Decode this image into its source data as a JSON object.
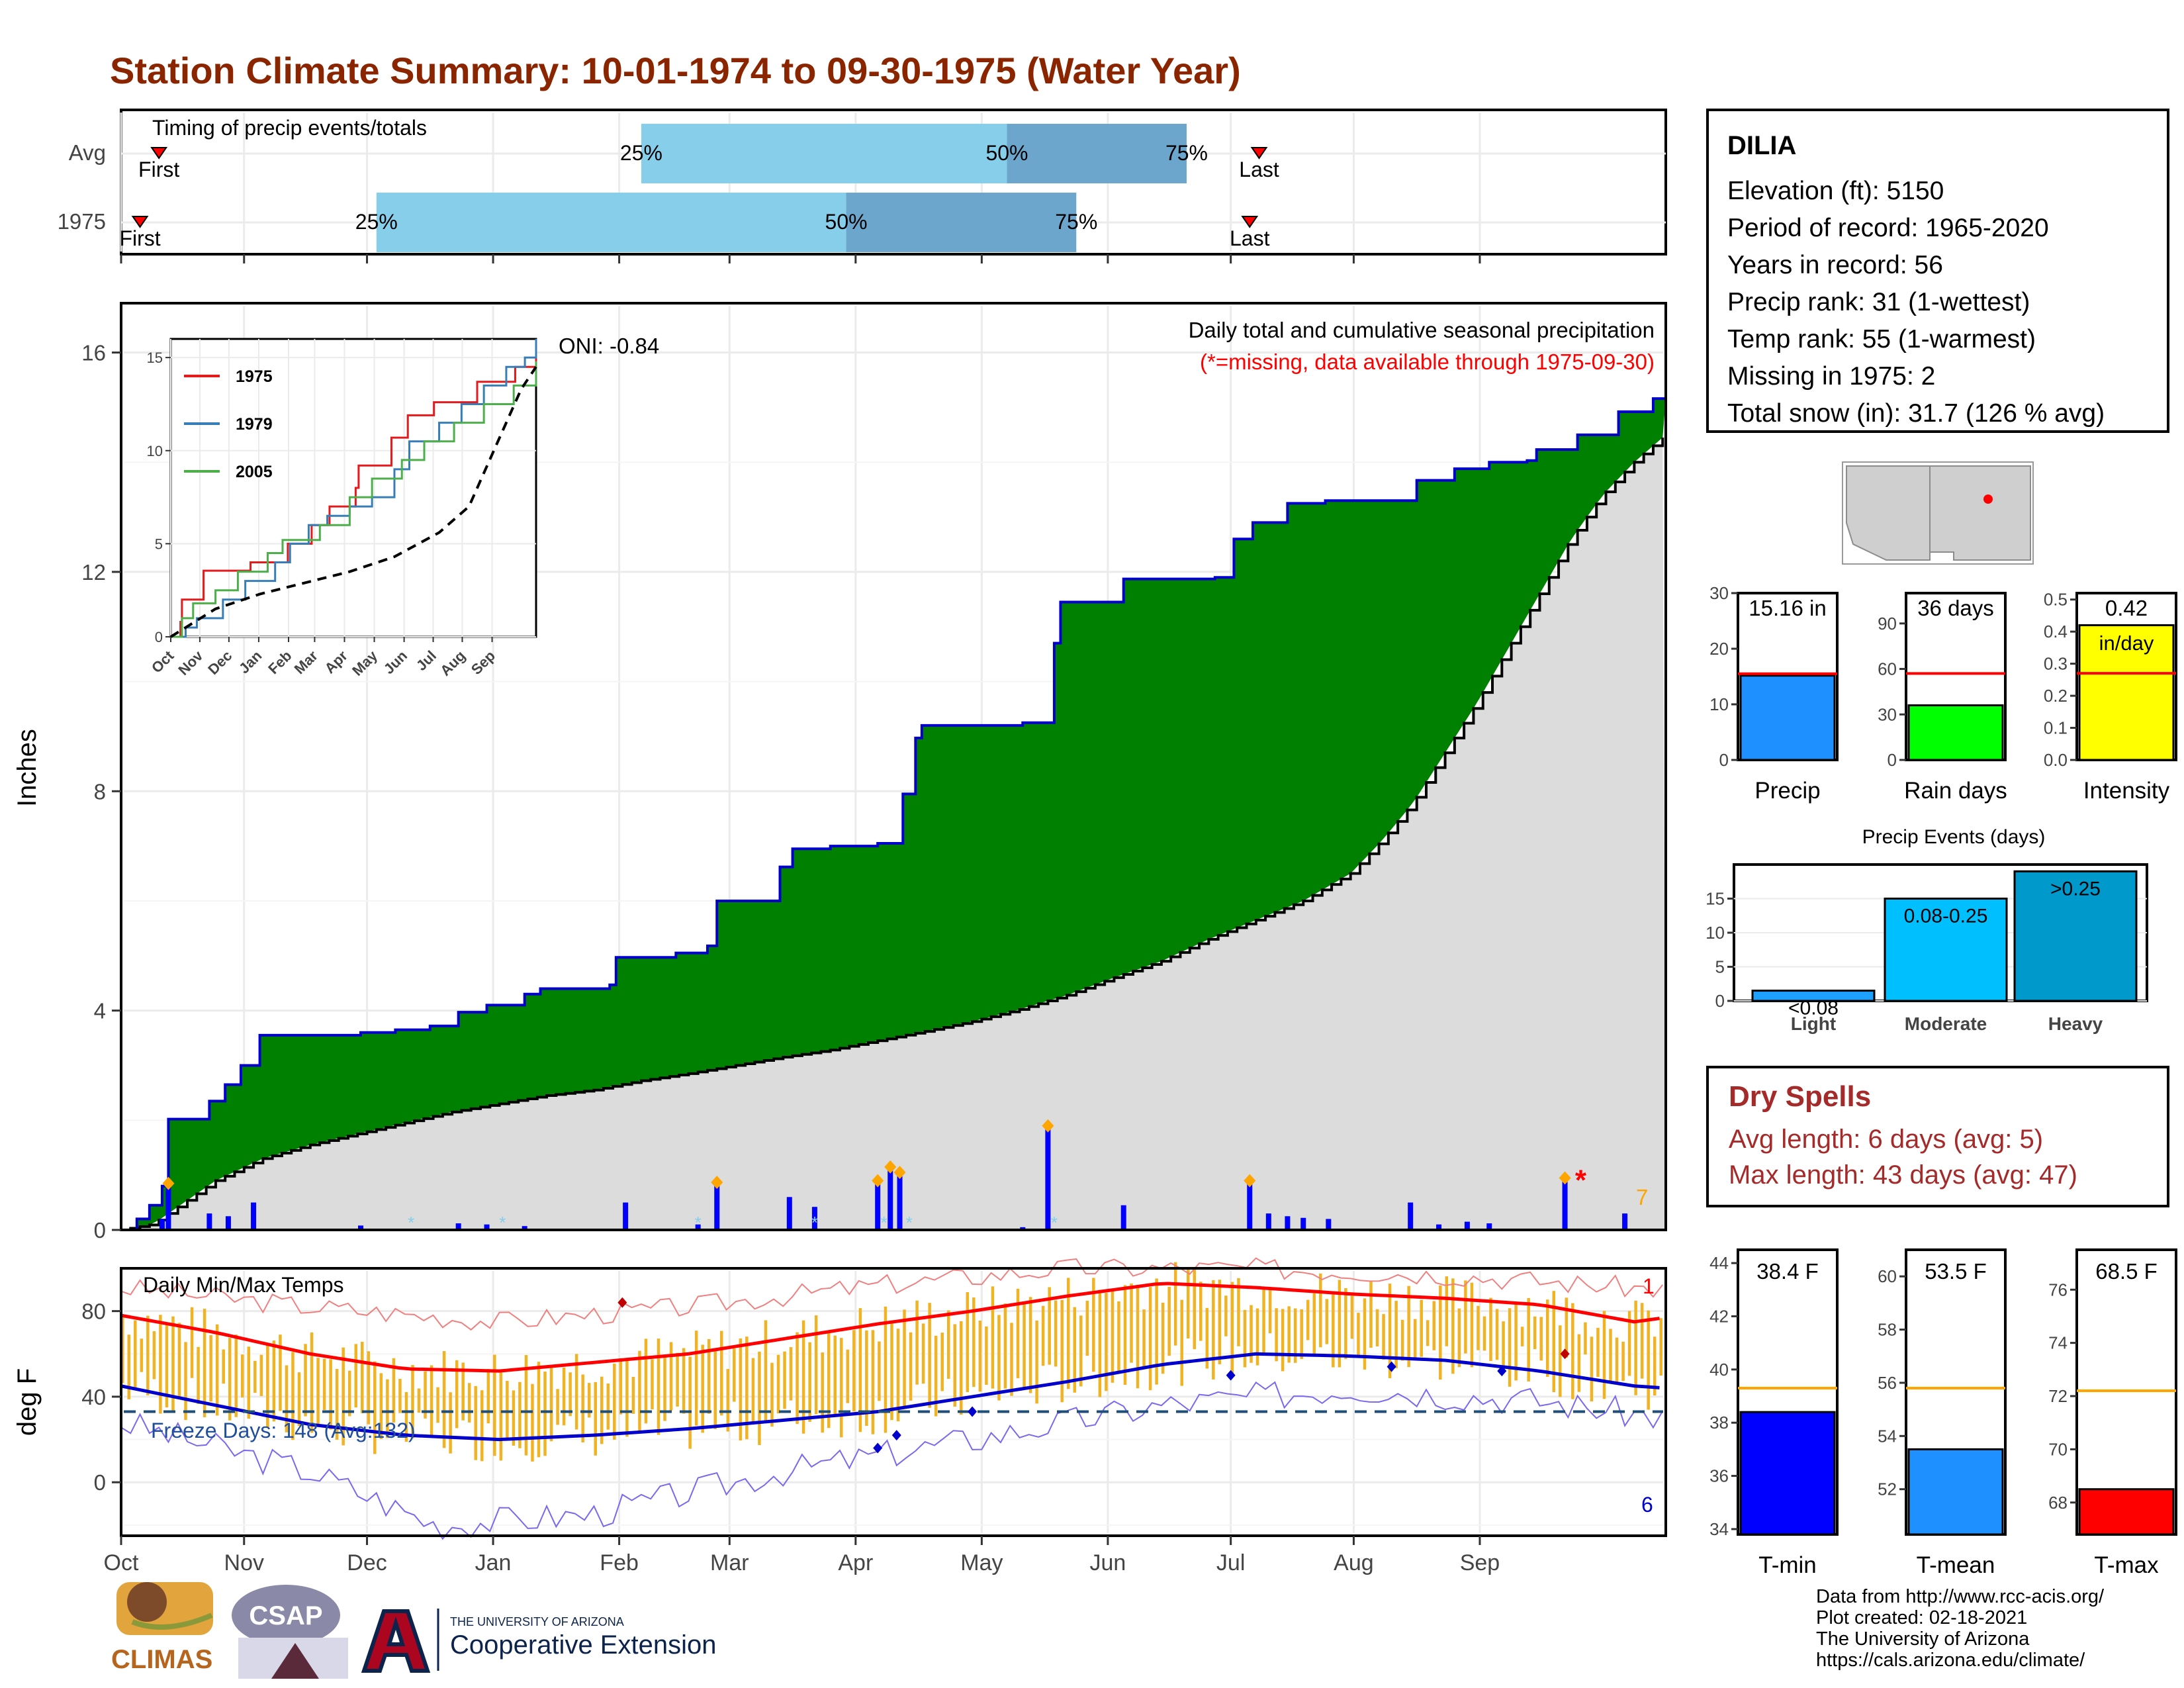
{
  "title": "Station Climate Summary: 10-01-1974 to 09-30-1975 (Water Year)",
  "months": [
    "Oct",
    "Nov",
    "Dec",
    "Jan",
    "Feb",
    "Mar",
    "Apr",
    "May",
    "Jun",
    "Jul",
    "Aug",
    "Sep"
  ],
  "timing": {
    "heading": "Timing of precip events/totals",
    "rows": [
      {
        "label": "Avg",
        "first": "First",
        "last": "Last",
        "p25": "25%",
        "p50": "50%",
        "p75": "75%",
        "first_day": 12,
        "p25_day": 165,
        "p50_day": 281,
        "p75_day": 338,
        "last_day": 361
      },
      {
        "label": "1975",
        "first": "First",
        "last": "Last",
        "p25": "25%",
        "p50": "50%",
        "p75": "75%",
        "first_day": 6,
        "p25_day": 81,
        "p50_day": 230,
        "p75_day": 303,
        "last_day": 358
      }
    ],
    "colors": {
      "q1": "#87ceeb",
      "q2": "#6ca6cd",
      "marker": "#ff0000"
    }
  },
  "precip_panel": {
    "header": "Daily total and cumulative seasonal precipitation",
    "missing_note": "(*=missing, data available through 1975-09-30)",
    "oni": "ONI: -0.84",
    "ylabel": "Inches",
    "yticks": [
      "0",
      "4",
      "8",
      "12",
      "16"
    ],
    "corner_count": "7",
    "colors": {
      "surplus": "#008000",
      "avg_fill": "#dcdcdc",
      "cum_line": "#0000cd",
      "bar": "#0000ff",
      "star": "#ff0000",
      "diamond": "#ffa500",
      "snow": "#87ceeb"
    }
  },
  "inset": {
    "legend": [
      {
        "name": "1975",
        "color": "#e41a1c"
      },
      {
        "name": "1979",
        "color": "#377eb8"
      },
      {
        "name": "2005",
        "color": "#4daf4a"
      }
    ],
    "yticks": [
      "0",
      "5",
      "10",
      "15"
    ],
    "xticks": [
      "Oct",
      "Nov",
      "Dec",
      "Jan",
      "Feb",
      "Mar",
      "Apr",
      "May",
      "Jun",
      "Jul",
      "Aug",
      "Sep"
    ]
  },
  "temp_panel": {
    "heading": "Daily Min/Max Temps",
    "ylabel": "deg F",
    "yticks": [
      "0",
      "40",
      "80"
    ],
    "freeze": "Freeze Days: 148 (Avg:132)",
    "top_count": "1",
    "bottom_count": "6",
    "colors": {
      "bar": "#f0b323",
      "max_line": "#ff0000",
      "min_line": "#0000cd"
    }
  },
  "station": {
    "name": "DILIA",
    "lines": [
      "Elevation (ft): 5150",
      "Period of record: 1965-2020",
      "Years in record: 56",
      "Precip rank: 31 (1-wettest)",
      "Temp rank: 55 (1-warmest)",
      "Missing in 1975: 2",
      "Total snow (in): 31.7 (126 % avg)"
    ]
  },
  "stats_precip": [
    {
      "name": "Precip",
      "value_label": "15.16 in",
      "yticks": [
        "0",
        "10",
        "20",
        "30"
      ]
    },
    {
      "name": "Rain days",
      "value_label": "36 days",
      "yticks": [
        "0",
        "30",
        "60",
        "90"
      ]
    },
    {
      "name": "Intensity",
      "value_label": "0.42",
      "unit": "in/day",
      "yticks": [
        "0.0",
        "0.1",
        "0.2",
        "0.3",
        "0.4",
        "0.5"
      ]
    }
  ],
  "events": {
    "title": "Precip Events (days)",
    "bars": [
      {
        "cat": "Light",
        "label": "<0.08"
      },
      {
        "cat": "Moderate",
        "label": "0.08-0.25"
      },
      {
        "cat": "Heavy",
        "label": ">0.25"
      }
    ],
    "yticks": [
      "0",
      "5",
      "10",
      "15"
    ]
  },
  "dry_spells": {
    "heading": "Dry Spells",
    "avg": "Avg length: 6 days (avg: 5)",
    "max": "Max length: 43 days (avg: 47)"
  },
  "stats_temp": [
    {
      "name": "T-min",
      "value_label": "38.4 F",
      "yticks": [
        "34",
        "36",
        "38",
        "40",
        "42",
        "44"
      ]
    },
    {
      "name": "T-mean",
      "value_label": "53.5 F",
      "yticks": [
        "52",
        "54",
        "56",
        "58",
        "60"
      ]
    },
    {
      "name": "T-max",
      "value_label": "68.5 F",
      "yticks": [
        "68",
        "70",
        "72",
        "74",
        "76"
      ]
    }
  ],
  "credits": [
    "Data from http://www.rcc-acis.org/",
    "Plot created: 02-18-2021",
    "The University of Arizona",
    "https://cals.arizona.edu/climate/"
  ],
  "logos": {
    "climas": "CLIMAS",
    "csap": "CSAP",
    "ua_small": "THE UNIVERSITY OF ARIZONA",
    "ua_big": "Cooperative Extension"
  },
  "chart_data": [
    {
      "type": "area",
      "title": "Daily total and cumulative seasonal precipitation",
      "ylabel": "Inches",
      "ylim": [
        0,
        16
      ],
      "x_unit": "day of water year (Oct 1 = 0)",
      "cumulative_1975": [
        [
          0,
          0
        ],
        [
          5,
          0.2
        ],
        [
          9,
          0.45
        ],
        [
          13,
          0.8
        ],
        [
          15,
          2.02
        ],
        [
          28,
          2.35
        ],
        [
          33,
          2.65
        ],
        [
          38,
          3.0
        ],
        [
          44,
          3.55
        ],
        [
          76,
          3.6
        ],
        [
          87,
          3.65
        ],
        [
          98,
          3.72
        ],
        [
          107,
          3.97
        ],
        [
          116,
          4.1
        ],
        [
          128,
          4.3
        ],
        [
          133,
          4.4
        ],
        [
          155,
          4.47
        ],
        [
          157,
          4.97
        ],
        [
          176,
          5.05
        ],
        [
          186,
          5.18
        ],
        [
          189,
          6.0
        ],
        [
          209,
          6.62
        ],
        [
          213,
          6.95
        ],
        [
          225,
          7.0
        ],
        [
          240,
          7.05
        ],
        [
          248,
          7.95
        ],
        [
          252,
          8.97
        ],
        [
          254,
          9.2
        ],
        [
          286,
          9.25
        ],
        [
          296,
          10.7
        ],
        [
          298,
          11.45
        ],
        [
          318,
          11.87
        ],
        [
          347,
          11.9
        ],
        [
          353,
          12.6
        ],
        [
          359,
          12.9
        ],
        [
          370,
          13.25
        ],
        [
          382,
          13.3
        ],
        [
          411,
          13.67
        ],
        [
          423,
          13.88
        ],
        [
          434,
          14.0
        ],
        [
          446,
          14.03
        ],
        [
          449,
          14.23
        ],
        [
          462,
          14.5
        ],
        [
          475,
          14.92
        ],
        [
          486,
          15.16
        ],
        [
          490,
          15.16
        ]
      ],
      "average": [
        [
          0,
          0
        ],
        [
          10,
          0.1
        ],
        [
          20,
          0.5
        ],
        [
          30,
          0.9
        ],
        [
          45,
          1.3
        ],
        [
          60,
          1.55
        ],
        [
          75,
          1.75
        ],
        [
          90,
          1.95
        ],
        [
          105,
          2.15
        ],
        [
          120,
          2.3
        ],
        [
          135,
          2.45
        ],
        [
          150,
          2.55
        ],
        [
          165,
          2.72
        ],
        [
          180,
          2.85
        ],
        [
          195,
          3.0
        ],
        [
          210,
          3.15
        ],
        [
          225,
          3.28
        ],
        [
          240,
          3.45
        ],
        [
          255,
          3.62
        ],
        [
          270,
          3.8
        ],
        [
          285,
          4.02
        ],
        [
          300,
          4.28
        ],
        [
          315,
          4.6
        ],
        [
          330,
          4.9
        ],
        [
          345,
          5.3
        ],
        [
          360,
          5.65
        ],
        [
          375,
          6.0
        ],
        [
          390,
          6.5
        ],
        [
          400,
          7.1
        ],
        [
          410,
          7.8
        ],
        [
          420,
          8.7
        ],
        [
          430,
          9.6
        ],
        [
          440,
          10.6
        ],
        [
          450,
          11.6
        ],
        [
          460,
          12.6
        ],
        [
          470,
          13.4
        ],
        [
          480,
          14.0
        ],
        [
          490,
          14.5
        ]
      ],
      "daily_bars": [
        [
          13,
          0.2
        ],
        [
          15,
          0.8
        ],
        [
          28,
          0.3
        ],
        [
          34,
          0.25
        ],
        [
          42,
          0.5
        ],
        [
          76,
          0.08
        ],
        [
          107,
          0.12
        ],
        [
          116,
          0.1
        ],
        [
          128,
          0.07
        ],
        [
          160,
          0.5
        ],
        [
          183,
          0.1
        ],
        [
          189,
          0.82
        ],
        [
          212,
          0.6
        ],
        [
          220,
          0.42
        ],
        [
          240,
          0.85
        ],
        [
          244,
          1.1
        ],
        [
          247,
          1.0
        ],
        [
          286,
          0.05
        ],
        [
          294,
          1.85
        ],
        [
          318,
          0.45
        ],
        [
          358,
          0.85
        ],
        [
          364,
          0.3
        ],
        [
          370,
          0.25
        ],
        [
          375,
          0.22
        ],
        [
          383,
          0.2
        ],
        [
          409,
          0.5
        ],
        [
          418,
          0.1
        ],
        [
          427,
          0.15
        ],
        [
          434,
          0.12
        ],
        [
          458,
          0.9
        ],
        [
          477,
          0.3
        ]
      ]
    },
    {
      "type": "line",
      "title": "Daily Min/Max Temps",
      "ylabel": "deg F",
      "ylim": [
        -25,
        100
      ],
      "avg_max": [
        [
          0,
          78
        ],
        [
          30,
          70
        ],
        [
          60,
          60
        ],
        [
          90,
          53
        ],
        [
          120,
          52
        ],
        [
          150,
          56
        ],
        [
          180,
          60
        ],
        [
          210,
          67
        ],
        [
          240,
          74
        ],
        [
          270,
          80
        ],
        [
          300,
          87
        ],
        [
          330,
          93
        ],
        [
          360,
          91
        ],
        [
          390,
          88
        ],
        [
          420,
          86
        ],
        [
          450,
          83
        ],
        [
          480,
          75
        ],
        [
          490,
          77
        ]
      ],
      "avg_min": [
        [
          0,
          45
        ],
        [
          30,
          36
        ],
        [
          60,
          27
        ],
        [
          90,
          22
        ],
        [
          120,
          20
        ],
        [
          150,
          22
        ],
        [
          180,
          25
        ],
        [
          210,
          29
        ],
        [
          240,
          33
        ],
        [
          270,
          40
        ],
        [
          300,
          47
        ],
        [
          330,
          55
        ],
        [
          360,
          60
        ],
        [
          390,
          59
        ],
        [
          420,
          57
        ],
        [
          450,
          52
        ],
        [
          480,
          45
        ],
        [
          490,
          44
        ]
      ],
      "record_max": [
        [
          0,
          91
        ],
        [
          60,
          82
        ],
        [
          120,
          75
        ],
        [
          180,
          82
        ],
        [
          240,
          92
        ],
        [
          300,
          100
        ],
        [
          360,
          100
        ],
        [
          420,
          97
        ],
        [
          490,
          90
        ]
      ],
      "record_min": [
        [
          0,
          28
        ],
        [
          60,
          5
        ],
        [
          100,
          -20
        ],
        [
          150,
          -15
        ],
        [
          210,
          5
        ],
        [
          270,
          20
        ],
        [
          330,
          36
        ],
        [
          390,
          44
        ],
        [
          450,
          38
        ],
        [
          490,
          30
        ]
      ],
      "freeze_line": 33
    },
    {
      "type": "line",
      "title": "Inset: cumulative precipitation comparison",
      "ylim": [
        0,
        16
      ],
      "series": [
        {
          "name": "1975",
          "values": [
            [
              0,
              0
            ],
            [
              13,
              0.8
            ],
            [
              15,
              2.0
            ],
            [
              44,
              3.55
            ],
            [
              107,
              4.0
            ],
            [
              157,
              5.0
            ],
            [
              189,
              6.0
            ],
            [
              213,
              7.0
            ],
            [
              248,
              8.0
            ],
            [
              252,
              9.2
            ],
            [
              296,
              10.7
            ],
            [
              318,
              11.9
            ],
            [
              353,
              12.6
            ],
            [
              411,
              13.7
            ],
            [
              462,
              14.5
            ],
            [
              490,
              15.2
            ]
          ]
        },
        {
          "name": "1979",
          "values": [
            [
              0,
              0
            ],
            [
              20,
              0.5
            ],
            [
              35,
              1.0
            ],
            [
              70,
              2.0
            ],
            [
              100,
              3.0
            ],
            [
              140,
              4.0
            ],
            [
              160,
              5.0
            ],
            [
              185,
              6.0
            ],
            [
              210,
              6.5
            ],
            [
              240,
              7.0
            ],
            [
              270,
              7.5
            ],
            [
              300,
              9.0
            ],
            [
              320,
              10.5
            ],
            [
              360,
              11.5
            ],
            [
              390,
              12.5
            ],
            [
              420,
              13.5
            ],
            [
              450,
              14.5
            ],
            [
              475,
              15.0
            ],
            [
              490,
              16.0
            ]
          ]
        },
        {
          "name": "2005",
          "values": [
            [
              0,
              0
            ],
            [
              15,
              1.0
            ],
            [
              30,
              1.8
            ],
            [
              60,
              2.5
            ],
            [
              90,
              3.5
            ],
            [
              130,
              4.5
            ],
            [
              150,
              5.2
            ],
            [
              200,
              6.0
            ],
            [
              240,
              7.5
            ],
            [
              270,
              8.5
            ],
            [
              310,
              9.5
            ],
            [
              340,
              10.5
            ],
            [
              380,
              11.5
            ],
            [
              420,
              12.5
            ],
            [
              460,
              13.5
            ],
            [
              490,
              14.8
            ]
          ]
        },
        {
          "name": "average",
          "values": [
            [
              0,
              0
            ],
            [
              60,
              1.5
            ],
            [
              120,
              2.3
            ],
            [
              180,
              2.9
            ],
            [
              240,
              3.5
            ],
            [
              300,
              4.3
            ],
            [
              360,
              5.6
            ],
            [
              400,
              7.0
            ],
            [
              440,
              10.6
            ],
            [
              470,
              13.3
            ],
            [
              490,
              14.5
            ]
          ]
        }
      ]
    },
    {
      "type": "bar",
      "title": "Precip",
      "categories": [
        "Precip"
      ],
      "values": [
        15.16
      ],
      "average": 15.5,
      "ylim": [
        0,
        30
      ]
    },
    {
      "type": "bar",
      "title": "Rain days",
      "categories": [
        "Rain days"
      ],
      "values": [
        36
      ],
      "average": 57,
      "ylim": [
        0,
        110
      ]
    },
    {
      "type": "bar",
      "title": "Intensity",
      "categories": [
        "Intensity"
      ],
      "values": [
        0.42
      ],
      "average": 0.27,
      "ylim": [
        0,
        0.52
      ]
    },
    {
      "type": "bar",
      "title": "Precip Events (days)",
      "categories": [
        "Light",
        "Moderate",
        "Heavy"
      ],
      "values": [
        1.5,
        15,
        19
      ],
      "ylim": [
        0,
        20
      ]
    },
    {
      "type": "bar",
      "title": "T-min",
      "categories": [
        "T-min"
      ],
      "values": [
        38.4
      ],
      "average": 39.3,
      "ylim": [
        33.8,
        44.5
      ]
    },
    {
      "type": "bar",
      "title": "T-mean",
      "categories": [
        "T-mean"
      ],
      "values": [
        53.5
      ],
      "average": 55.8,
      "ylim": [
        50.3,
        61
      ]
    },
    {
      "type": "bar",
      "title": "T-max",
      "categories": [
        "T-max"
      ],
      "values": [
        68.5
      ],
      "average": 72.2,
      "ylim": [
        66.8,
        77.5
      ]
    }
  ]
}
